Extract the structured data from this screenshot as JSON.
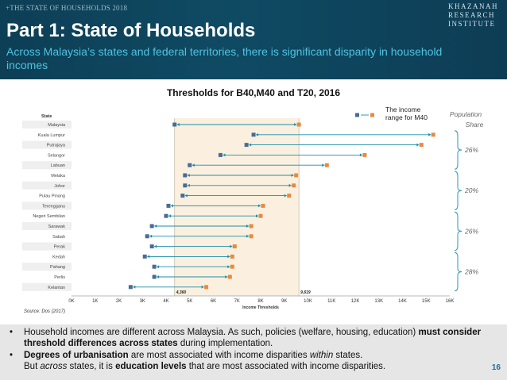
{
  "header": {
    "kicker": "+THE STATE OF HOUSEHOLDS 2018",
    "title": "Part 1: State of Households",
    "subtitle": "Across Malaysia’s states and federal territories, there is significant disparity in household incomes",
    "logo_lines": [
      "KHAZANAH",
      "RESEARCH",
      "INSTITUTE"
    ]
  },
  "chart_data": {
    "type": "range-dot",
    "title": "Thresholds for B40,M40 and T20, 2016",
    "xlabel": "Income Thresholds",
    "ycol_label": "State",
    "xlim": [
      0,
      16000
    ],
    "x_ticks": [
      "0K",
      "1K",
      "2K",
      "3K",
      "4K",
      "5K",
      "6K",
      "7K",
      "8K",
      "9K",
      "10K",
      "11K",
      "12K",
      "13K",
      "14K",
      "15K",
      "16K"
    ],
    "legend_label": "The income range for M40",
    "legend_position": "top-right",
    "highlight_band": [
      4360,
      9619
    ],
    "band_labels": [
      "4,360",
      "9,619"
    ],
    "colors": {
      "low": "#4a6b93",
      "high": "#e88a3c",
      "line": "#1a8fa6",
      "band": "#fbf0e0",
      "band_edge": "#c8bca8"
    },
    "categories": [
      "Malaysia",
      "Kuala Lumpur",
      "Putrajaya",
      "Selangor",
      "Labuan",
      "Melaka",
      "Johor",
      "Pulau Pinang",
      "Terengganu",
      "Negeri Sembilan",
      "Sarawak",
      "Sabah",
      "Perak",
      "Kedah",
      "Pahang",
      "Perlis",
      "Kelantan"
    ],
    "series": [
      {
        "values": [
          4360,
          7700,
          7400,
          6300,
          5000,
          4800,
          4800,
          4700,
          4100,
          4000,
          3400,
          3200,
          3400,
          3100,
          3500,
          3500,
          2500
        ]
      },
      {
        "values": [
          9619,
          15300,
          14800,
          12400,
          10800,
          9500,
          9400,
          9200,
          8100,
          8000,
          7600,
          7600,
          6900,
          6800,
          6800,
          6700,
          5700
        ]
      }
    ],
    "population_share": {
      "header": [
        "Population",
        "Share"
      ],
      "groups": [
        {
          "label": "26%",
          "from": 1,
          "to": 4
        },
        {
          "label": "20%",
          "from": 5,
          "to": 8
        },
        {
          "label": "26%",
          "from": 9,
          "to": 12
        },
        {
          "label": "28%",
          "from": 13,
          "to": 16
        }
      ]
    }
  },
  "source": "Source: Dos (2017)",
  "bullets": [
    [
      {
        "t": "Household incomes are different across Malaysia. As such, policies (welfare, housing, education) "
      },
      {
        "t": "must consider threshold differences across states",
        "b": true
      },
      {
        "t": " during implementation."
      }
    ],
    [
      {
        "t": "Degrees of urbanisation",
        "b": true
      },
      {
        "t": " are most associated with income disparities "
      },
      {
        "t": "within",
        "i": true
      },
      {
        "t": " states."
      },
      {
        "br": true
      },
      {
        "t": "But "
      },
      {
        "t": "across",
        "i": true
      },
      {
        "t": " states, it is "
      },
      {
        "t": "education levels",
        "b": true
      },
      {
        "t": " that are most associated with income disparities."
      }
    ]
  ],
  "page_number": "16"
}
